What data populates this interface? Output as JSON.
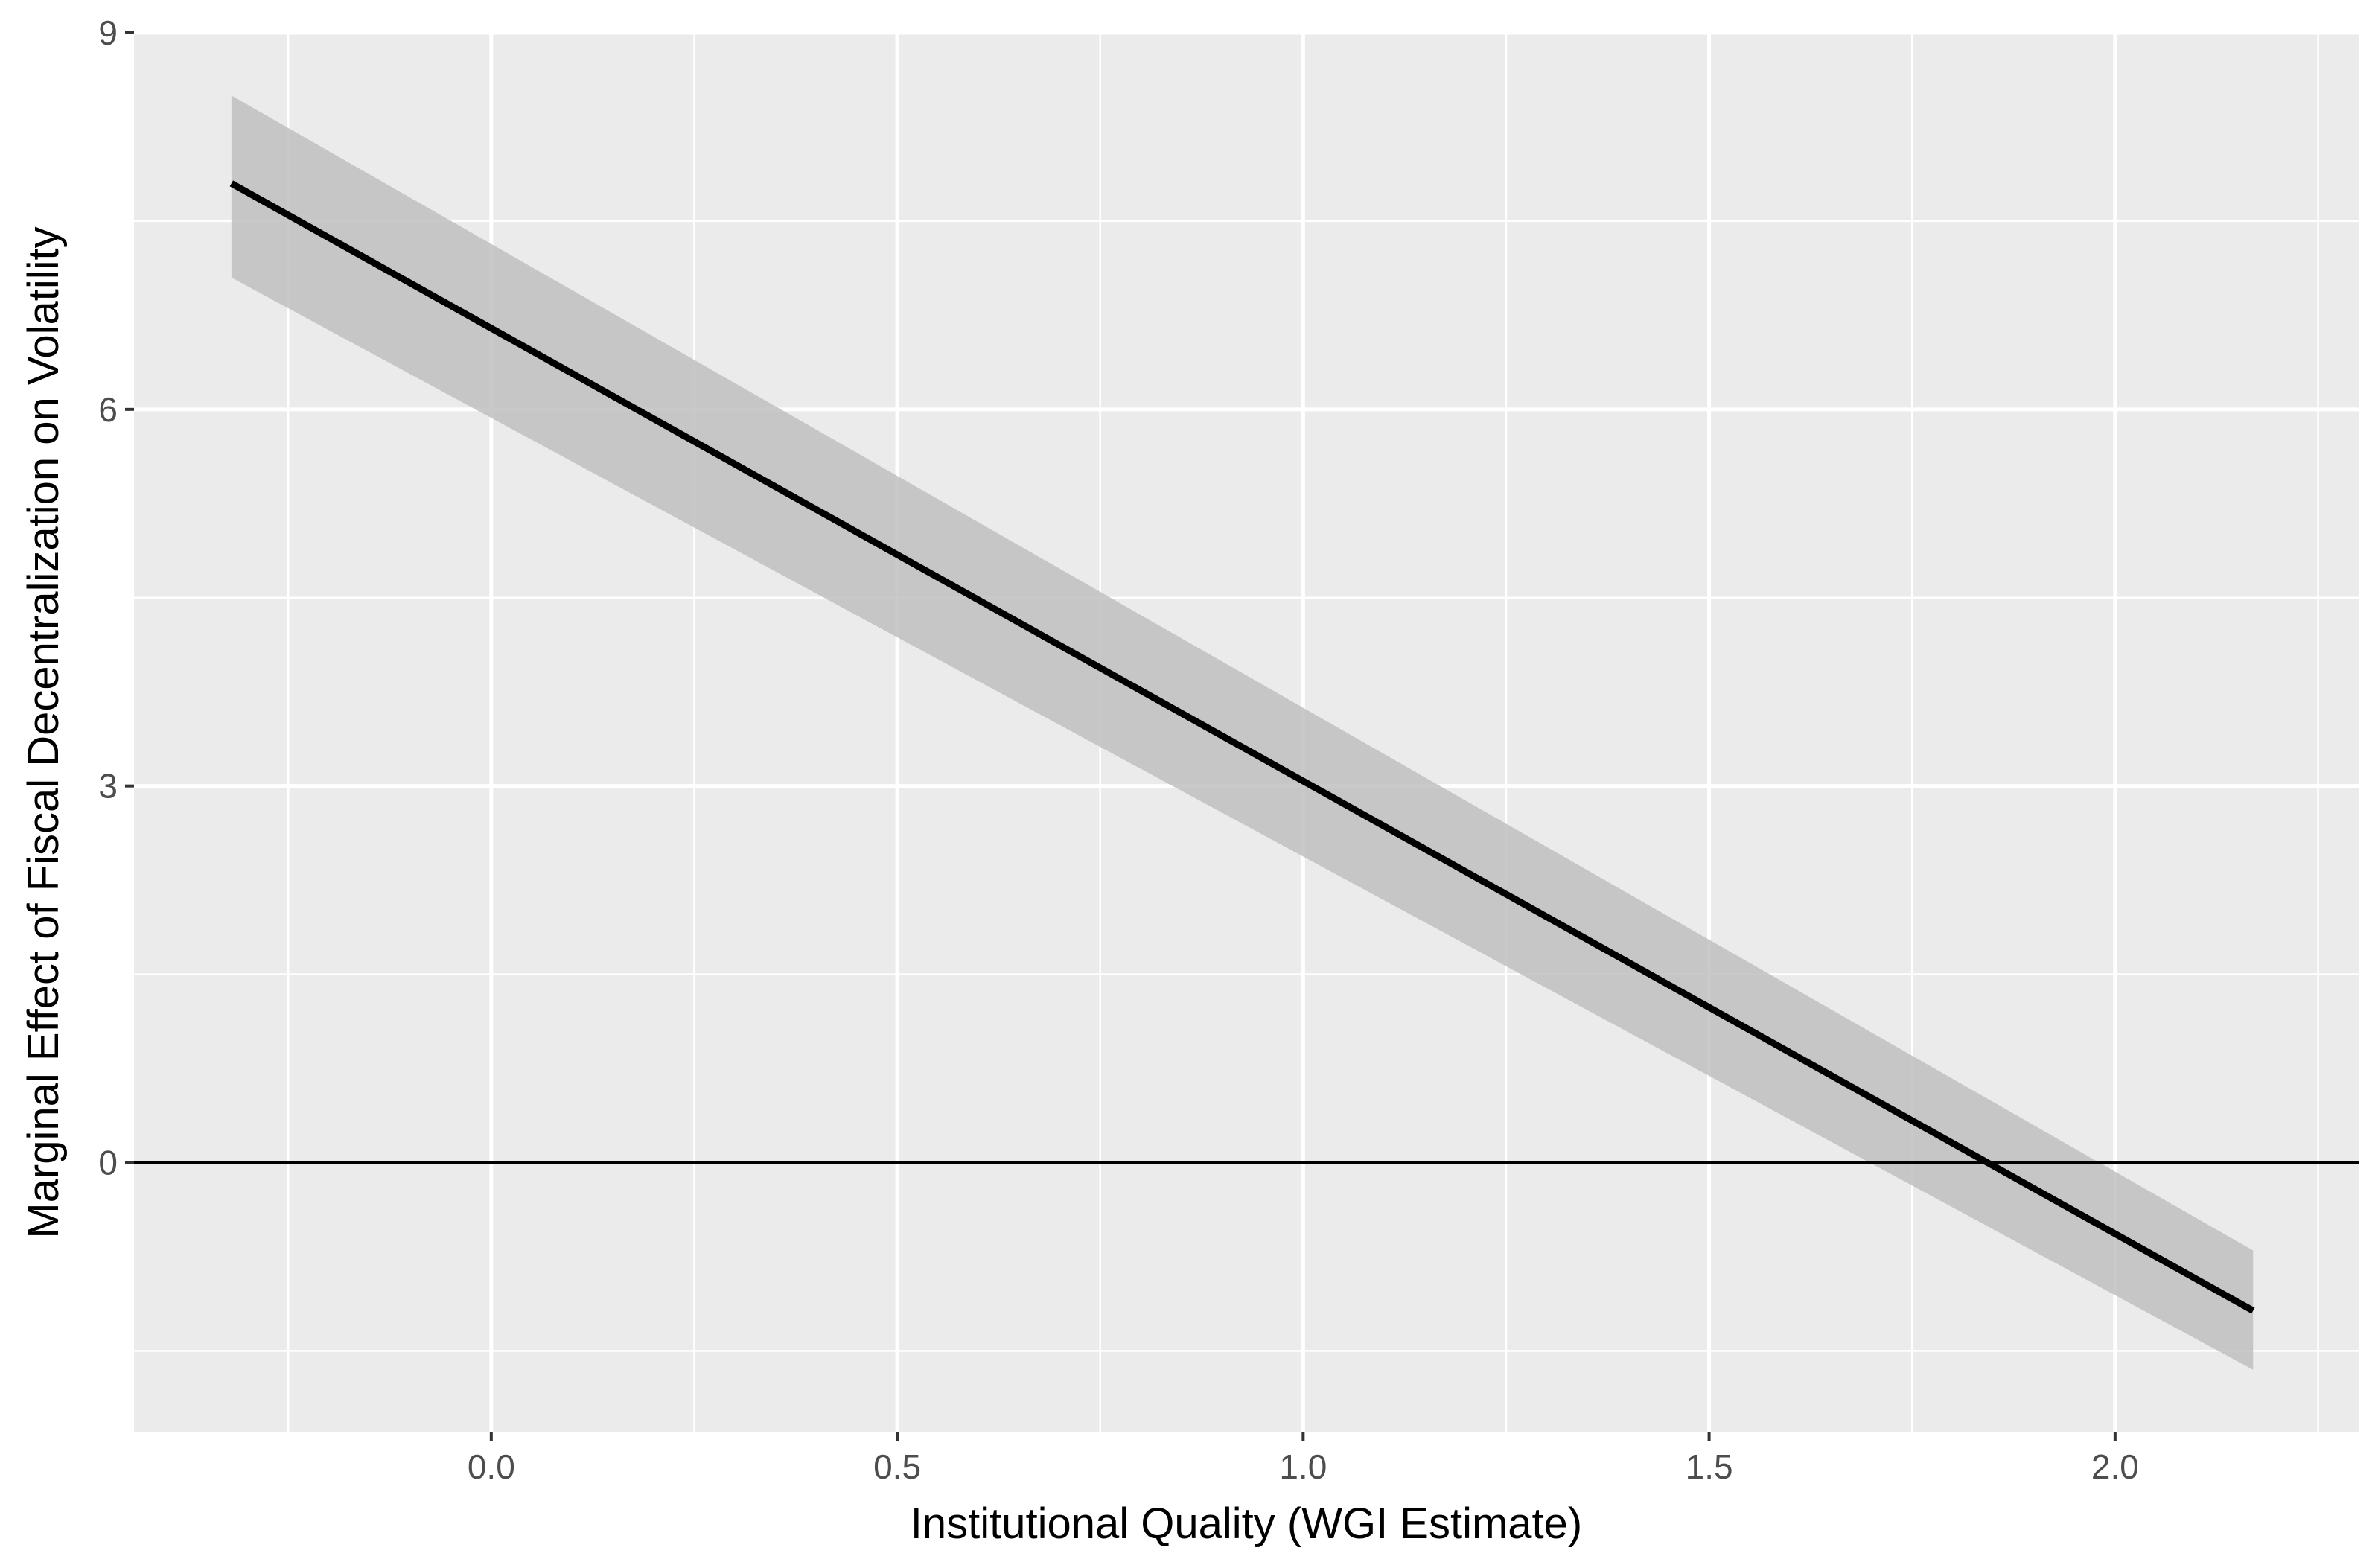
{
  "chart_data": {
    "type": "line",
    "title": "",
    "xlabel": "Institutional Quality (WGI Estimate)",
    "ylabel": "Marginal Effect of Fiscal Decentralization on Volatility",
    "xlim": [
      -0.44,
      2.3
    ],
    "ylim": [
      -2.15,
      9.0
    ],
    "x_ticks": [
      0.0,
      0.5,
      1.0,
      1.5,
      2.0
    ],
    "x_tick_labels": [
      "0.0",
      "0.5",
      "1.0",
      "1.5",
      "2.0"
    ],
    "y_ticks": [
      0,
      3,
      6,
      9
    ],
    "y_tick_labels": [
      "0",
      "3",
      "6",
      "9"
    ],
    "x_minor_gridlines": [
      -0.25,
      0.25,
      0.75,
      1.25,
      1.75,
      2.25
    ],
    "y_minor_gridlines": [
      -1.5,
      1.5,
      4.5,
      7.5
    ],
    "grid": true,
    "background_color": "#ebebeb",
    "gridline_color": "#ffffff",
    "ribbon_color": "#bfbfbf",
    "line_color": "#000000",
    "reference_line": {
      "y": 0,
      "color": "#000000"
    },
    "series": [
      {
        "x": [
          -0.32,
          2.17
        ],
        "y": [
          7.8,
          -1.18
        ],
        "lower": [
          7.05,
          -1.65
        ],
        "upper": [
          8.5,
          -0.7
        ]
      }
    ]
  }
}
